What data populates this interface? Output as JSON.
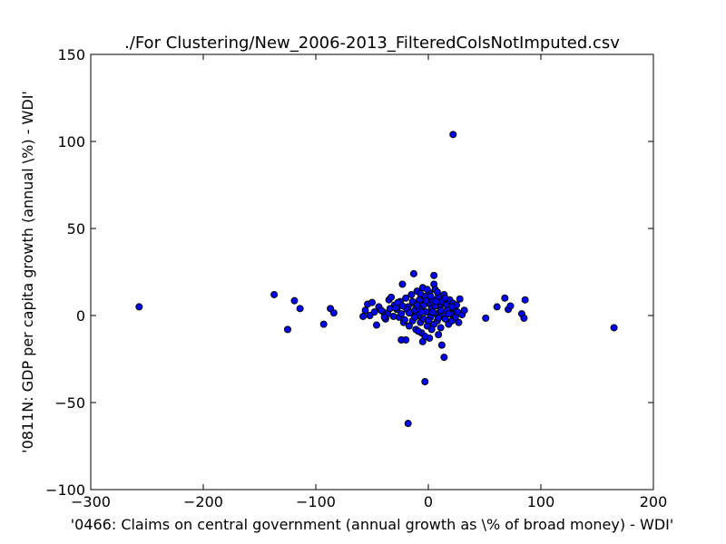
{
  "chart_data": {
    "type": "scatter",
    "title": "./For Clustering/New_2006-2013_FilteredColsNotImputed.csv",
    "xlabel": "'0466: Claims on central government  (annual growth as \\% of broad money) - WDI'",
    "ylabel": "'0811N: GDP per capita growth  (annual \\%) - WDI'",
    "xlim": [
      -300,
      200
    ],
    "ylim": [
      -100,
      150
    ],
    "xticks": [
      -300,
      -200,
      -100,
      0,
      100,
      200
    ],
    "yticks": [
      -100,
      -50,
      0,
      50,
      100,
      150
    ],
    "xtick_labels": [
      "−300",
      "−200",
      "−100",
      "0",
      "100",
      "200"
    ],
    "ytick_labels": [
      "−100",
      "−50",
      "0",
      "50",
      "100",
      "150"
    ],
    "grid": false,
    "marker_color": "#0000ff",
    "points": [
      [
        -257,
        5
      ],
      [
        -137,
        12
      ],
      [
        -125,
        -8
      ],
      [
        -119,
        8.5
      ],
      [
        -114,
        4
      ],
      [
        -93,
        -5
      ],
      [
        -87,
        4
      ],
      [
        -84,
        1.5
      ],
      [
        22,
        104
      ],
      [
        -18,
        -62
      ],
      [
        -3,
        -38
      ],
      [
        14,
        -24
      ],
      [
        12,
        -17
      ],
      [
        165,
        -7
      ],
      [
        51,
        -1.5
      ],
      [
        61,
        5
      ],
      [
        68,
        10
      ],
      [
        71,
        3.5
      ],
      [
        73,
        5.5
      ],
      [
        83,
        1
      ],
      [
        85,
        -1.5
      ],
      [
        86,
        9
      ],
      [
        -23,
        18
      ],
      [
        -13,
        24
      ],
      [
        5,
        23
      ],
      [
        5,
        18
      ],
      [
        -24,
        -14
      ],
      [
        -20,
        -14
      ],
      [
        -5,
        -15
      ],
      [
        1,
        -13
      ],
      [
        -6,
        -10
      ],
      [
        9,
        -11
      ],
      [
        -58,
        -0.5
      ],
      [
        -56,
        3
      ],
      [
        -54,
        6.5
      ],
      [
        -50,
        7.5
      ],
      [
        -52,
        0
      ],
      [
        -46,
        -5.5
      ],
      [
        -44,
        5
      ],
      [
        -40,
        2
      ],
      [
        -38,
        -2
      ],
      [
        -35,
        9
      ],
      [
        -33,
        10.5
      ],
      [
        -30,
        6
      ],
      [
        -28,
        3.5
      ],
      [
        -26,
        -1
      ],
      [
        -25,
        8
      ],
      [
        -24,
        1
      ],
      [
        -22,
        -4
      ],
      [
        -20,
        10
      ],
      [
        -18,
        5
      ],
      [
        -17,
        -6
      ],
      [
        -16,
        1.5
      ],
      [
        -15,
        12
      ],
      [
        -14,
        -3
      ],
      [
        -13,
        7
      ],
      [
        -12,
        3
      ],
      [
        -11,
        -8
      ],
      [
        -10,
        14
      ],
      [
        -9,
        0
      ],
      [
        -8,
        9
      ],
      [
        -7,
        -4
      ],
      [
        -6,
        5
      ],
      [
        -5,
        16
      ],
      [
        -4,
        -2
      ],
      [
        -3,
        11
      ],
      [
        -2,
        2
      ],
      [
        -1,
        -6
      ],
      [
        0,
        7
      ],
      [
        1,
        13
      ],
      [
        2,
        -1
      ],
      [
        3,
        4
      ],
      [
        4,
        9
      ],
      [
        5,
        -5
      ],
      [
        6,
        15
      ],
      [
        7,
        1
      ],
      [
        8,
        -3
      ],
      [
        9,
        11
      ],
      [
        10,
        5
      ],
      [
        11,
        -7
      ],
      [
        12,
        8
      ],
      [
        13,
        0
      ],
      [
        14,
        12
      ],
      [
        15,
        -2
      ],
      [
        16,
        6
      ],
      [
        17,
        3
      ],
      [
        18,
        -5
      ],
      [
        19,
        9
      ],
      [
        20,
        1
      ],
      [
        21,
        -3
      ],
      [
        22,
        7
      ],
      [
        23,
        4
      ],
      [
        24,
        -1
      ],
      [
        25,
        6
      ],
      [
        26,
        2
      ],
      [
        27,
        -4
      ],
      [
        28,
        9.5
      ],
      [
        30,
        0.5
      ],
      [
        32,
        3
      ],
      [
        -31,
        -0.5
      ],
      [
        -29,
        4.5
      ],
      [
        -27,
        7.5
      ],
      [
        -21,
        -2.5
      ],
      [
        -19,
        3.5
      ],
      [
        -14,
        8
      ],
      [
        -9,
        -9
      ],
      [
        -7,
        12.5
      ],
      [
        -3,
        -12
      ],
      [
        -1,
        15
      ],
      [
        3,
        -8
      ],
      [
        6,
        5.5
      ],
      [
        8,
        13.5
      ],
      [
        10,
        -0.5
      ],
      [
        -36,
        1
      ],
      [
        -42,
        3
      ],
      [
        -48,
        2
      ],
      [
        -39,
        -1
      ],
      [
        -34,
        4
      ],
      [
        -23,
        5.5
      ],
      [
        -17,
        1.5
      ],
      [
        -12,
        -1
      ],
      [
        -8,
        4
      ],
      [
        -4,
        6
      ],
      [
        0,
        -3
      ],
      [
        4,
        2
      ],
      [
        7,
        8
      ],
      [
        11,
        3
      ],
      [
        15,
        10
      ],
      [
        18,
        1
      ],
      [
        21,
        5
      ],
      [
        -2,
        8.5
      ],
      [
        2,
        11
      ],
      [
        -10,
        6
      ],
      [
        -6,
        2
      ],
      [
        9,
        -1.5
      ]
    ]
  }
}
